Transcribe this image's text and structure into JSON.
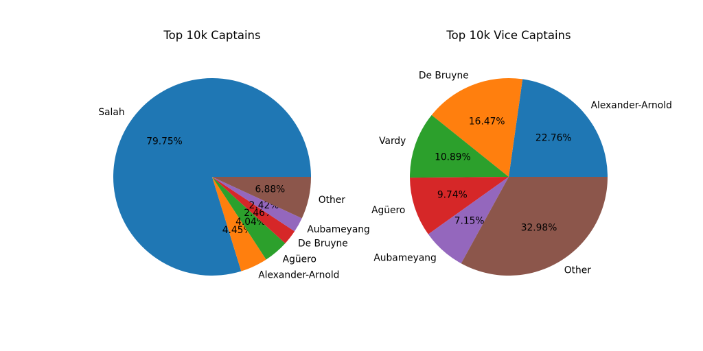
{
  "chart_data": [
    {
      "type": "pie",
      "title": "Top 10k Captains",
      "labels": [
        "Salah",
        "Alexander-Arnold",
        "Agüero",
        "De Bruyne",
        "Aubameyang",
        "Other"
      ],
      "values": [
        79.75,
        4.45,
        4.04,
        2.46,
        2.42,
        6.88
      ],
      "pct_labels": [
        "79.75%",
        "4.45%",
        "4.04%",
        "2.46%",
        "2.42%",
        "6.88%"
      ],
      "colors": [
        "#1f77b4",
        "#ff7f0e",
        "#2ca02c",
        "#d62728",
        "#9467bd",
        "#8c564b"
      ]
    },
    {
      "type": "pie",
      "title": "Top 10k Vice Captains",
      "labels": [
        "Alexander-Arnold",
        "De Bruyne",
        "Vardy",
        "Agüero",
        "Aubameyang",
        "Other"
      ],
      "values": [
        22.76,
        16.47,
        10.89,
        9.74,
        7.15,
        32.98
      ],
      "pct_labels": [
        "22.76%",
        "16.47%",
        "10.89%",
        "9.74%",
        "7.15%",
        "32.98%"
      ],
      "colors": [
        "#1f77b4",
        "#ff7f0e",
        "#2ca02c",
        "#d62728",
        "#9467bd",
        "#8c564b"
      ]
    }
  ]
}
